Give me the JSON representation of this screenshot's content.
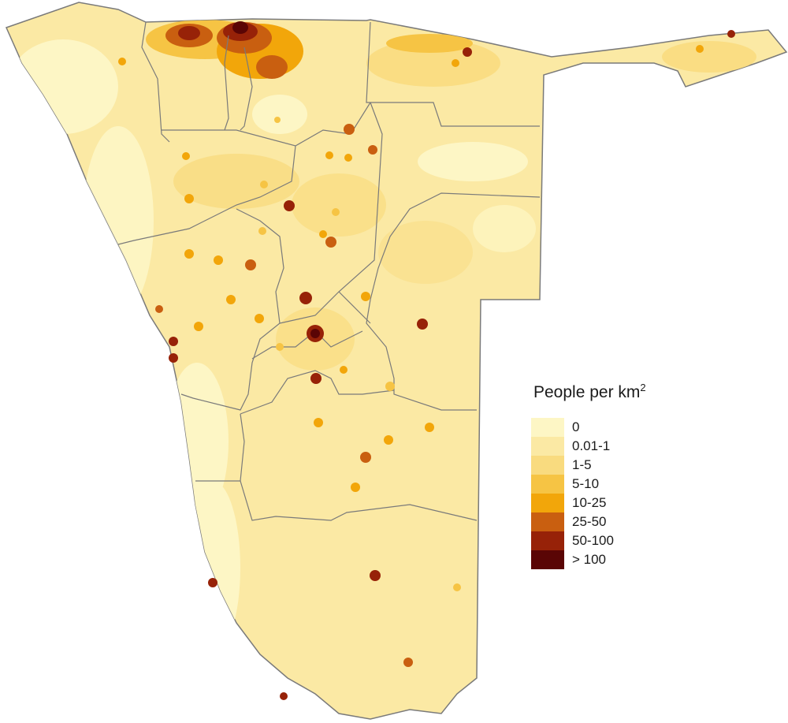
{
  "legend": {
    "title": "People per km",
    "title_superscript": "2",
    "classes": [
      {
        "label": "0",
        "color": "#fdf6c5"
      },
      {
        "label": "0.01-1",
        "color": "#fbe9a4"
      },
      {
        "label": "1-5",
        "color": "#f9db7f"
      },
      {
        "label": "5-10",
        "color": "#f6c444"
      },
      {
        "label": "10-25",
        "color": "#f2a60a"
      },
      {
        "label": "25-50",
        "color": "#c95f10"
      },
      {
        "label": "50-100",
        "color": "#972208"
      },
      {
        "label": "> 100",
        "color": "#5a0505"
      }
    ]
  },
  "map": {
    "subject": "Namibia population density",
    "border_color": "#7a7a7a"
  }
}
